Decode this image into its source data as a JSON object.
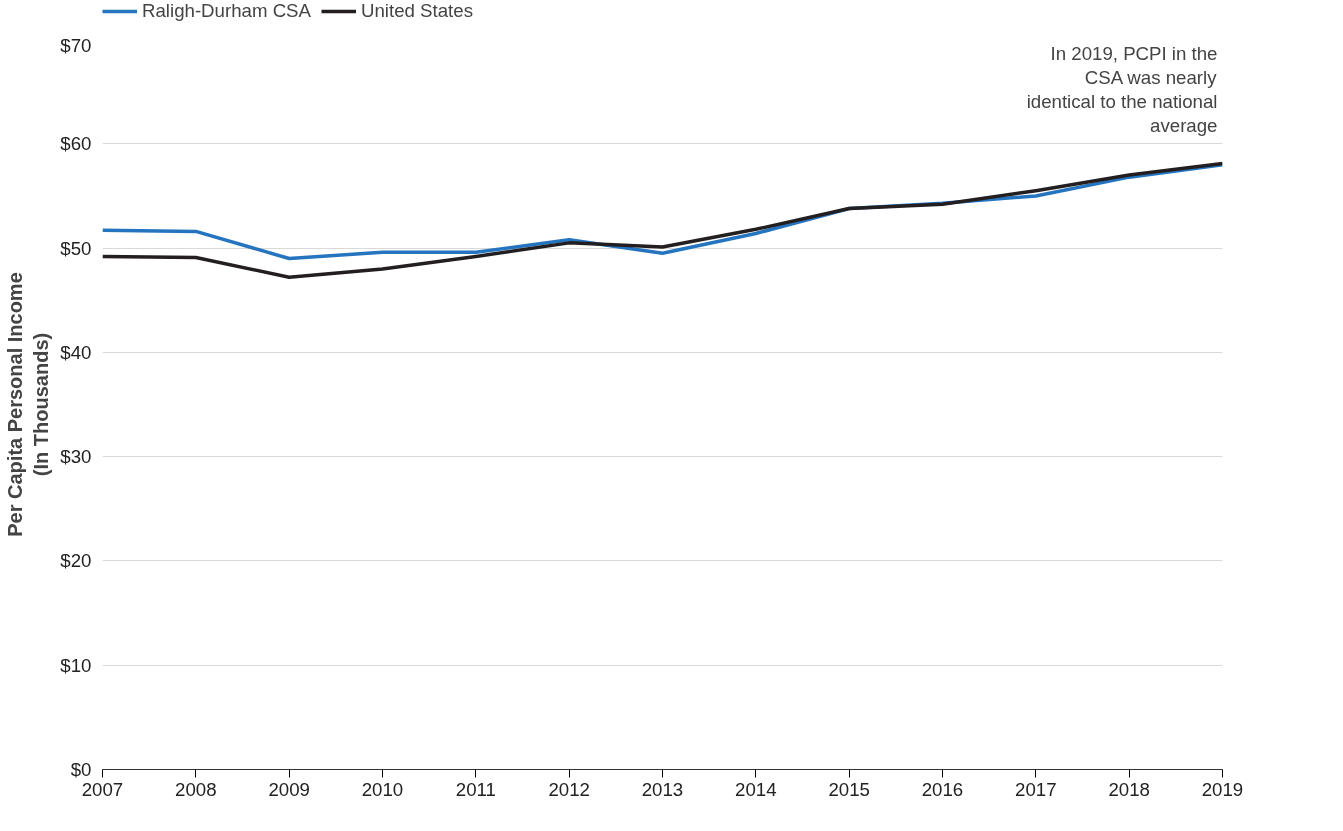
{
  "chart_data": {
    "type": "line",
    "ylabel": "Per Capita Personal Income\n(In Thousands)",
    "x": [
      2007,
      2008,
      2009,
      2010,
      2011,
      2012,
      2013,
      2014,
      2015,
      2016,
      2017,
      2018,
      2019
    ],
    "series": [
      {
        "name": "Raligh-Durham CSA",
        "color": "#2474c0",
        "values": [
          51.7,
          51.6,
          49.0,
          49.6,
          49.6,
          50.8,
          49.5,
          51.4,
          53.8,
          54.3,
          55.0,
          56.8,
          58.0
        ]
      },
      {
        "name": "United States",
        "color": "#231f20",
        "values": [
          49.2,
          49.1,
          47.2,
          48.0,
          49.2,
          50.5,
          50.1,
          51.8,
          53.8,
          54.2,
          55.5,
          57.0,
          58.1
        ]
      }
    ],
    "xlim": [
      2007,
      2019
    ],
    "xticks": [
      2007,
      2008,
      2009,
      2010,
      2011,
      2012,
      2013,
      2014,
      2015,
      2016,
      2017,
      2018,
      2019
    ],
    "ylim": [
      0,
      70
    ],
    "yticks": [
      {
        "value": 0,
        "label": "$0"
      },
      {
        "value": 10,
        "label": "$10"
      },
      {
        "value": 20,
        "label": "$20"
      },
      {
        "value": 30,
        "label": "$30"
      },
      {
        "value": 40,
        "label": "$40"
      },
      {
        "value": 50,
        "label": "$50"
      },
      {
        "value": 60,
        "label": "$60"
      },
      {
        "value": 70,
        "label": "$70"
      }
    ],
    "grid": "y",
    "legend": "top left",
    "marker": "none",
    "line_style": "solid",
    "annotations": [
      "In 2019, PCPI in the\nCSA was nearly\nidentical to the national\naverage"
    ]
  }
}
